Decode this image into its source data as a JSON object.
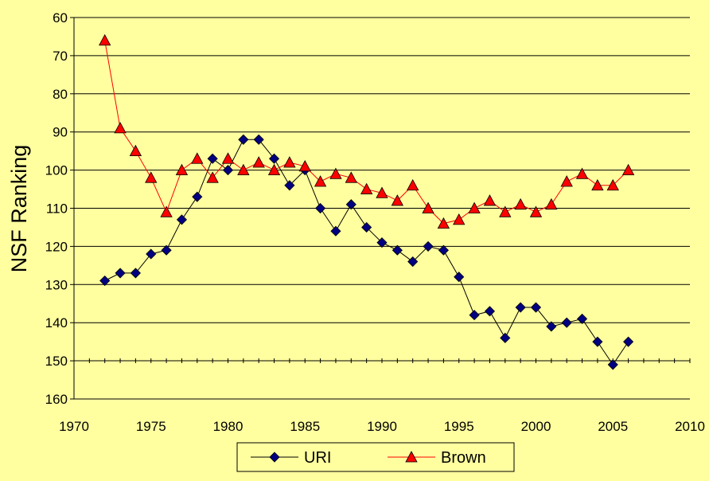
{
  "chart_data": {
    "type": "line",
    "title": "",
    "xlabel": "",
    "ylabel": "NSF Ranking",
    "xlim": [
      1970,
      2010
    ],
    "ylim": [
      60,
      160
    ],
    "y_inverted": true,
    "x_ticks": [
      "1970",
      "1975",
      "1980",
      "1985",
      "1990",
      "1995",
      "2000",
      "2005",
      "2010"
    ],
    "y_ticks": [
      "60",
      "70",
      "80",
      "90",
      "100",
      "110",
      "120",
      "130",
      "140",
      "150",
      "160"
    ],
    "grid": "horizontal",
    "legend_position": "bottom",
    "series": [
      {
        "name": "URI",
        "color": "#000080",
        "line_color": "#000000",
        "marker": "diamond",
        "x": [
          1972,
          1973,
          1974,
          1975,
          1976,
          1977,
          1978,
          1979,
          1980,
          1981,
          1982,
          1983,
          1984,
          1985,
          1986,
          1987,
          1988,
          1989,
          1990,
          1991,
          1992,
          1993,
          1994,
          1995,
          1996,
          1997,
          1998,
          1999,
          2000,
          2001,
          2002,
          2003,
          2004,
          2005,
          2006
        ],
        "y": [
          129,
          127,
          127,
          122,
          121,
          113,
          107,
          97,
          100,
          92,
          92,
          97,
          104,
          100,
          110,
          116,
          109,
          115,
          119,
          121,
          124,
          120,
          121,
          128,
          138,
          137,
          144,
          136,
          136,
          141,
          140,
          139,
          145,
          151,
          145
        ]
      },
      {
        "name": "Brown",
        "color": "#ff0000",
        "line_color": "#ff0000",
        "marker": "triangle",
        "x": [
          1972,
          1973,
          1974,
          1975,
          1976,
          1977,
          1978,
          1979,
          1980,
          1981,
          1982,
          1983,
          1984,
          1985,
          1986,
          1987,
          1988,
          1989,
          1990,
          1991,
          1992,
          1993,
          1994,
          1995,
          1996,
          1997,
          1998,
          1999,
          2000,
          2001,
          2002,
          2003,
          2004,
          2005,
          2006
        ],
        "y": [
          66,
          89,
          95,
          102,
          111,
          100,
          97,
          102,
          97,
          100,
          98,
          100,
          98,
          99,
          103,
          101,
          102,
          105,
          106,
          108,
          104,
          110,
          114,
          113,
          110,
          108,
          111,
          109,
          111,
          109,
          103,
          101,
          104,
          104,
          100
        ]
      }
    ]
  }
}
